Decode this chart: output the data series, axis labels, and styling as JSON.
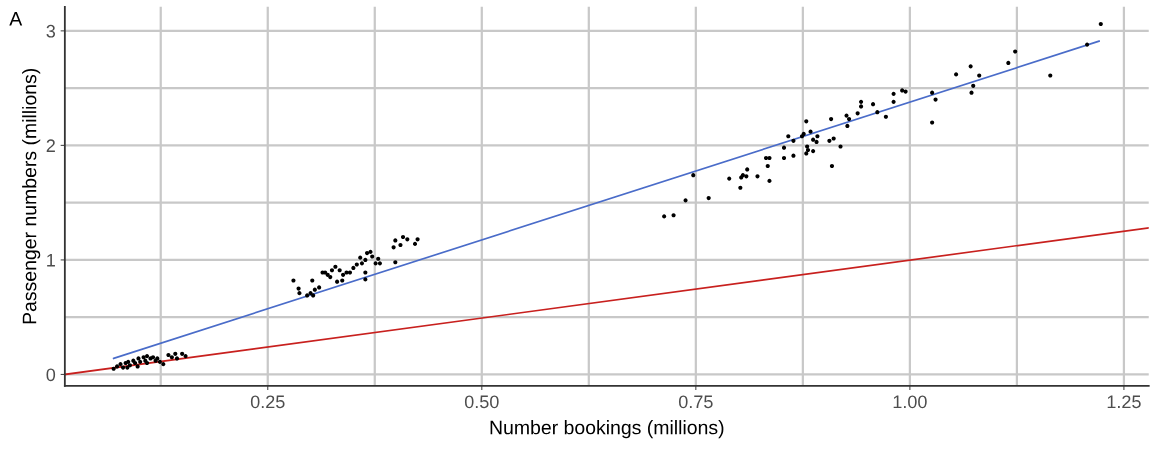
{
  "chart_data": {
    "type": "scatter",
    "xlabel": "Number bookings (millions)",
    "ylabel": "Passenger numbers (millions)",
    "annotations": [
      "A"
    ],
    "xlim": [
      0.013,
      1.279
    ],
    "ylim": [
      -0.1,
      3.21
    ],
    "xticks": [
      {
        "value": 0.25,
        "label": "0.25"
      },
      {
        "value": 0.5,
        "label": "0.50"
      },
      {
        "value": 0.75,
        "label": "0.75"
      },
      {
        "value": 1.0,
        "label": "1.00"
      },
      {
        "value": 1.25,
        "label": "1.25"
      }
    ],
    "yticks": [
      0,
      1,
      2,
      3
    ],
    "grid": true,
    "legend": false,
    "series": [
      {
        "marker": "circle",
        "color": "#000000",
        "x": [
          0.07,
          0.074,
          0.078,
          0.081,
          0.084,
          0.087,
          0.089,
          0.093,
          0.095,
          0.099,
          0.101,
          0.105,
          0.107,
          0.109,
          0.113,
          0.116,
          0.119,
          0.121,
          0.124,
          0.128,
          0.134,
          0.138,
          0.142,
          0.144,
          0.15,
          0.154,
          0.086,
          0.098,
          0.109,
          0.28,
          0.286,
          0.287,
          0.296,
          0.3,
          0.302,
          0.303,
          0.305,
          0.31,
          0.314,
          0.317,
          0.32,
          0.323,
          0.325,
          0.329,
          0.331,
          0.334,
          0.337,
          0.338,
          0.342,
          0.346,
          0.35,
          0.354,
          0.358,
          0.36,
          0.364,
          0.366,
          0.37,
          0.372,
          0.376,
          0.364,
          0.364,
          0.379,
          0.381,
          0.399,
          0.397,
          0.399,
          0.405,
          0.408,
          0.413,
          0.422,
          0.425,
          0.713,
          0.724,
          0.738,
          0.747,
          0.765,
          0.789,
          0.802,
          0.803,
          0.805,
          0.809,
          0.81,
          0.822,
          0.832,
          0.836,
          0.834,
          0.836,
          0.853,
          0.853,
          0.858,
          0.864,
          0.864,
          0.874,
          0.876,
          0.879,
          0.88,
          0.879,
          0.881,
          0.884,
          0.887,
          0.887,
          0.891,
          0.892,
          0.906,
          0.908,
          0.911,
          0.909,
          0.919,
          0.926,
          0.927,
          0.929,
          0.939,
          0.943,
          0.943,
          0.957,
          0.962,
          0.972,
          0.981,
          0.981,
          0.991,
          0.995,
          1.026,
          1.03,
          1.026,
          1.054,
          1.071,
          1.072,
          1.074,
          1.081,
          1.115,
          1.123,
          1.164,
          1.207,
          1.223
        ],
        "values": [
          0.05,
          0.07,
          0.09,
          0.06,
          0.1,
          0.11,
          0.08,
          0.12,
          0.1,
          0.14,
          0.11,
          0.15,
          0.12,
          0.16,
          0.14,
          0.15,
          0.12,
          0.14,
          0.11,
          0.09,
          0.17,
          0.15,
          0.18,
          0.14,
          0.18,
          0.16,
          0.06,
          0.07,
          0.1,
          0.82,
          0.75,
          0.71,
          0.69,
          0.71,
          0.82,
          0.69,
          0.74,
          0.76,
          0.89,
          0.89,
          0.87,
          0.85,
          0.91,
          0.94,
          0.81,
          0.91,
          0.82,
          0.87,
          0.89,
          0.89,
          0.93,
          0.96,
          1.02,
          0.97,
          1.0,
          1.06,
          1.07,
          1.03,
          0.97,
          0.89,
          0.83,
          1.01,
          0.97,
          1.17,
          1.11,
          0.98,
          1.13,
          1.2,
          1.18,
          1.14,
          1.18,
          1.38,
          1.39,
          1.52,
          1.74,
          1.54,
          1.71,
          1.63,
          1.72,
          1.74,
          1.73,
          1.79,
          1.73,
          1.89,
          1.89,
          1.82,
          1.69,
          1.98,
          1.89,
          2.08,
          1.91,
          2.04,
          2.08,
          2.1,
          2.21,
          1.99,
          1.93,
          1.96,
          2.12,
          2.05,
          1.95,
          2.03,
          2.08,
          2.04,
          2.23,
          2.06,
          1.82,
          1.99,
          2.26,
          2.17,
          2.23,
          2.28,
          2.38,
          2.34,
          2.36,
          2.29,
          2.25,
          2.45,
          2.38,
          2.48,
          2.47,
          2.46,
          2.4,
          2.2,
          2.62,
          2.69,
          2.46,
          2.52,
          2.61,
          2.72,
          2.82,
          2.61,
          2.88,
          3.06
        ]
      },
      {
        "type": "line",
        "marker": "none",
        "color": "#4a6cc9",
        "x": [
          0.07,
          1.221
        ],
        "values": [
          0.14,
          2.91
        ]
      },
      {
        "type": "line",
        "marker": "none",
        "color": "#c8201e",
        "x": [
          0.013,
          1.279
        ],
        "values": [
          0.0,
          1.28
        ]
      }
    ]
  }
}
